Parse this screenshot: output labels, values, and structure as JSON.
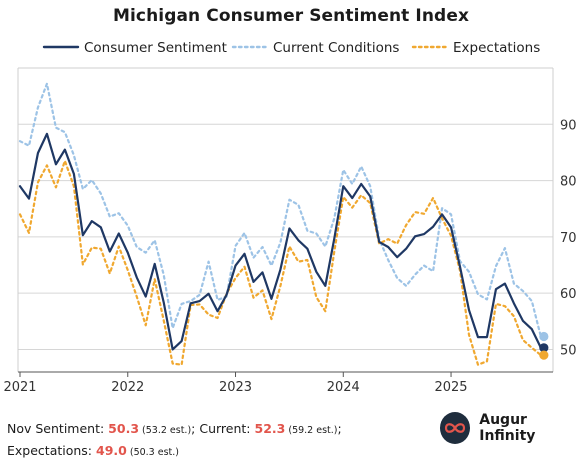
{
  "chart_data": {
    "type": "line",
    "title": "Michigan Consumer Sentiment Index",
    "xlabel": "",
    "ylabel": "",
    "x_ticks": [
      "2021",
      "2022",
      "2023",
      "2024",
      "2025"
    ],
    "y_ticks": [
      50,
      60,
      70,
      80,
      90
    ],
    "ylim": [
      46,
      100
    ],
    "grid": "horizontal",
    "legend": "top",
    "x": [
      "2021-01",
      "2021-02",
      "2021-03",
      "2021-04",
      "2021-05",
      "2021-06",
      "2021-07",
      "2021-08",
      "2021-09",
      "2021-10",
      "2021-11",
      "2021-12",
      "2022-01",
      "2022-02",
      "2022-03",
      "2022-04",
      "2022-05",
      "2022-06",
      "2022-07",
      "2022-08",
      "2022-09",
      "2022-10",
      "2022-11",
      "2022-12",
      "2023-01",
      "2023-02",
      "2023-03",
      "2023-04",
      "2023-05",
      "2023-06",
      "2023-07",
      "2023-08",
      "2023-09",
      "2023-10",
      "2023-11",
      "2023-12",
      "2024-01",
      "2024-02",
      "2024-03",
      "2024-04",
      "2024-05",
      "2024-06",
      "2024-07",
      "2024-08",
      "2024-09",
      "2024-10",
      "2024-11",
      "2024-12",
      "2025-01",
      "2025-02",
      "2025-03",
      "2025-04",
      "2025-05",
      "2025-06",
      "2025-07",
      "2025-08",
      "2025-09",
      "2025-10",
      "2025-11"
    ],
    "series": [
      {
        "name": "Consumer Sentiment",
        "color": "#1f3864",
        "style": "solid",
        "values": [
          79.0,
          76.8,
          84.9,
          88.3,
          82.9,
          85.5,
          81.2,
          70.3,
          72.8,
          71.7,
          67.4,
          70.6,
          67.2,
          62.8,
          59.4,
          65.2,
          58.4,
          50.0,
          51.5,
          58.2,
          58.6,
          59.9,
          56.8,
          59.7,
          64.9,
          67.0,
          62.0,
          63.7,
          59.0,
          64.2,
          71.5,
          69.4,
          67.9,
          63.8,
          61.3,
          69.7,
          79.0,
          76.9,
          79.4,
          77.2,
          69.1,
          68.2,
          66.4,
          67.9,
          70.1,
          70.5,
          71.8,
          74.0,
          71.7,
          64.7,
          57.0,
          52.2,
          52.2,
          60.7,
          61.7,
          58.2,
          55.1,
          53.6,
          50.3
        ]
      },
      {
        "name": "Current Conditions",
        "color": "#9dc3e6",
        "style": "dotted",
        "values": [
          87.0,
          86.2,
          93.0,
          97.2,
          89.4,
          88.6,
          84.5,
          78.5,
          80.1,
          77.7,
          73.6,
          74.2,
          72.0,
          68.2,
          67.2,
          69.4,
          63.3,
          53.8,
          58.1,
          58.6,
          59.7,
          65.6,
          58.8,
          59.4,
          68.4,
          70.7,
          66.3,
          68.2,
          64.9,
          69.0,
          76.6,
          75.7,
          71.1,
          70.6,
          68.3,
          73.3,
          81.9,
          79.4,
          82.5,
          79.0,
          69.6,
          65.9,
          62.7,
          61.3,
          63.3,
          64.9,
          63.9,
          75.1,
          74.0,
          65.7,
          63.8,
          59.8,
          58.9,
          64.8,
          68.0,
          61.7,
          60.4,
          58.6,
          52.3
        ]
      },
      {
        "name": "Expectations",
        "color": "#f0a830",
        "style": "dotted",
        "values": [
          74.0,
          70.7,
          79.7,
          82.7,
          78.8,
          83.5,
          79.0,
          65.1,
          68.1,
          67.9,
          63.5,
          68.3,
          64.1,
          59.4,
          54.3,
          62.5,
          55.2,
          47.5,
          47.3,
          57.9,
          58.0,
          56.2,
          55.6,
          59.9,
          62.7,
          64.7,
          59.2,
          60.5,
          55.4,
          61.3,
          68.3,
          65.6,
          65.9,
          59.3,
          56.8,
          67.4,
          77.1,
          75.2,
          77.4,
          76.0,
          68.8,
          69.6,
          68.8,
          72.1,
          74.4,
          74.1,
          76.9,
          73.3,
          70.2,
          64.0,
          52.6,
          47.3,
          47.9,
          58.1,
          57.7,
          55.9,
          51.7,
          50.3,
          49.0
        ]
      }
    ]
  },
  "footer": {
    "sentiment_label": "Nov Sentiment: ",
    "sentiment_value": "50.3",
    "sentiment_est": " (53.2 est.)",
    "sep1": "; Current: ",
    "current_value": "52.3",
    "current_est": " (59.2 est.)",
    "sep2": ";",
    "expectations_label": "Expectations: ",
    "expectations_value": "49.0",
    "expectations_est": " (50.3 est.)"
  },
  "brand": {
    "name": "Augur Infinity",
    "logo_icon": "infinity-icon",
    "logo_color": "#e2554c"
  }
}
